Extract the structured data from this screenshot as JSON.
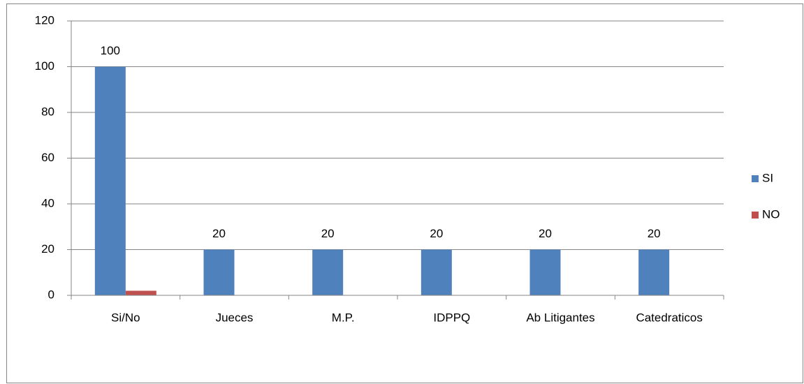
{
  "chart_data": {
    "type": "bar",
    "categories": [
      "Si/No",
      "Jueces",
      "M.P.",
      "IDPPQ",
      "Ab Litigantes",
      "Catedraticos"
    ],
    "series": [
      {
        "name": "SI",
        "color": "#4f81bd",
        "values": [
          100,
          20,
          20,
          20,
          20,
          20
        ],
        "data_labels": true
      },
      {
        "name": "NO",
        "color": "#c0504d",
        "values": [
          2,
          0,
          0,
          0,
          0,
          0
        ],
        "data_labels": false
      }
    ],
    "ylim": [
      0,
      120
    ],
    "yticks": [
      0,
      20,
      40,
      60,
      80,
      100,
      120
    ],
    "grid": true,
    "legend": "right"
  }
}
